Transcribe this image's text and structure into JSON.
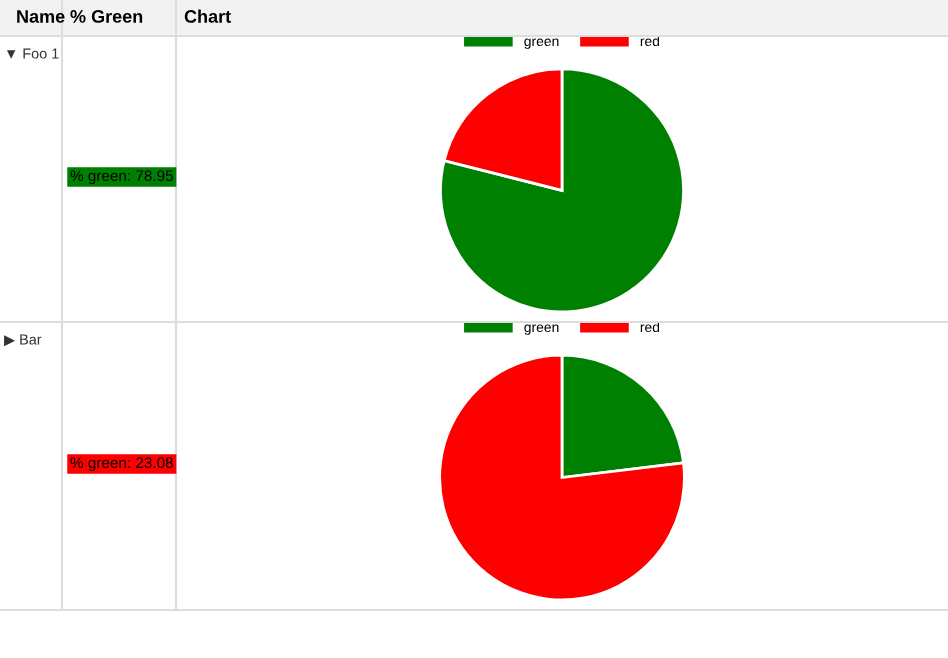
{
  "chart_data": [
    {
      "type": "pie",
      "categories": [
        "green",
        "red"
      ],
      "values": [
        78.95,
        21.05
      ],
      "colors": [
        "#008000",
        "#ff0000"
      ],
      "legend": "top",
      "annotations": [
        "Name",
        "% Green",
        "Chart",
        "▼ Foo 1",
        "% green: 78.95"
      ]
    },
    {
      "type": "pie",
      "categories": [
        "green",
        "red"
      ],
      "values": [
        23.08,
        76.92
      ],
      "colors": [
        "#008000",
        "#ff0000"
      ],
      "legend": "top",
      "annotations": [
        "▶ Bar",
        "% green: 23.08"
      ]
    }
  ]
}
